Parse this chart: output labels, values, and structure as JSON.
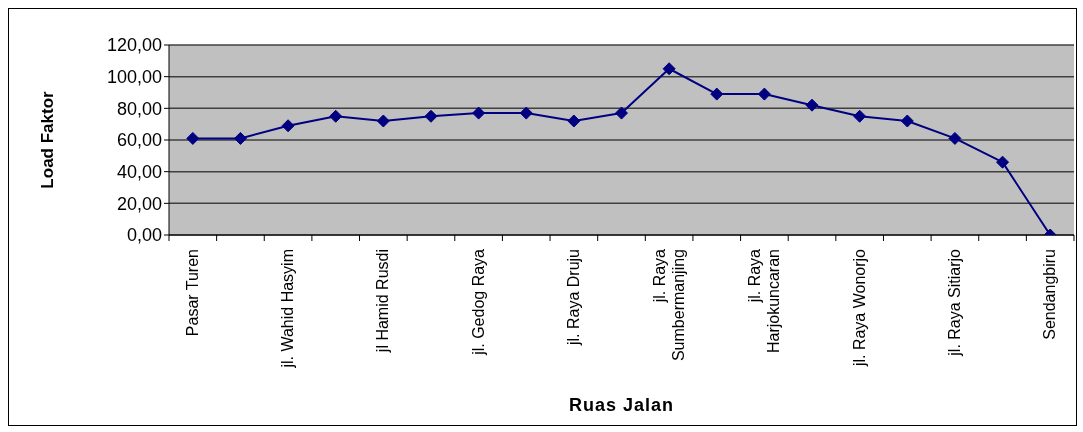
{
  "chart_data": {
    "type": "line",
    "xlabel": "Ruas Jalan",
    "ylabel": "Load Faktor",
    "categories": [
      "Pasar Turen",
      null,
      "jl. Wahid Hasyim",
      null,
      "jl Hamid Rusdi",
      null,
      "jl. Gedog Raya",
      null,
      "jl. Raya Druju",
      null,
      "jl. Raya Sumbermanjing",
      null,
      "jl. Raya Harjokuncaran",
      null,
      "jl. Raya Wonorjo",
      null,
      "jl. Raya Sitiarjo",
      null,
      "Sendangbiru"
    ],
    "series": [
      {
        "color": "#000080",
        "values": [
          61,
          61,
          69,
          75,
          72,
          75,
          77,
          77,
          72,
          77,
          105,
          89,
          89,
          82,
          75,
          72,
          61,
          46,
          0
        ]
      }
    ],
    "ylim": [
      0,
      120
    ],
    "yticks": [
      {
        "value": 0,
        "label": "0,00"
      },
      {
        "value": 20,
        "label": "20,00"
      },
      {
        "value": 40,
        "label": "40,00"
      },
      {
        "value": 60,
        "label": "60,00"
      },
      {
        "value": 80,
        "label": "80,00"
      },
      {
        "value": 100,
        "label": "100,00"
      },
      {
        "value": 120,
        "label": "120,00"
      }
    ],
    "grid": "y",
    "legend": false,
    "marker": "diamond",
    "line_style": "solid"
  }
}
